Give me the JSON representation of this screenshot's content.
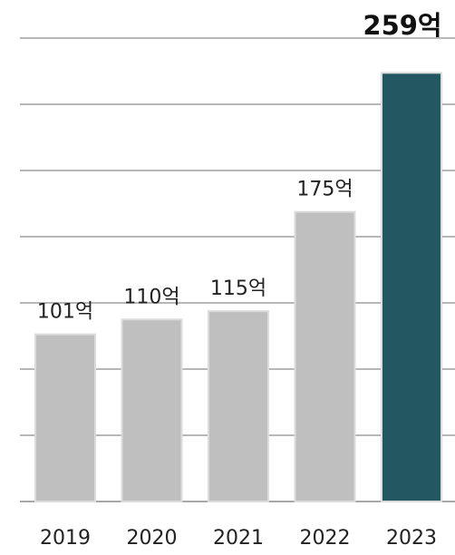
{
  "chart_data": {
    "type": "bar",
    "title": "",
    "xlabel": "",
    "ylabel": "",
    "categories": [
      "2019",
      "2020",
      "2021",
      "2022",
      "2023"
    ],
    "values": [
      101,
      110,
      115,
      175,
      259
    ],
    "value_labels": [
      "101억",
      "110억",
      "115억",
      "175억",
      "259억"
    ],
    "unit": "억",
    "ylim": [
      0,
      280
    ],
    "grid": true,
    "highlight_index": 4,
    "colors": {
      "bar": "#bfbfbf",
      "highlight": "#235863",
      "grid": "#8c8c8c"
    }
  }
}
